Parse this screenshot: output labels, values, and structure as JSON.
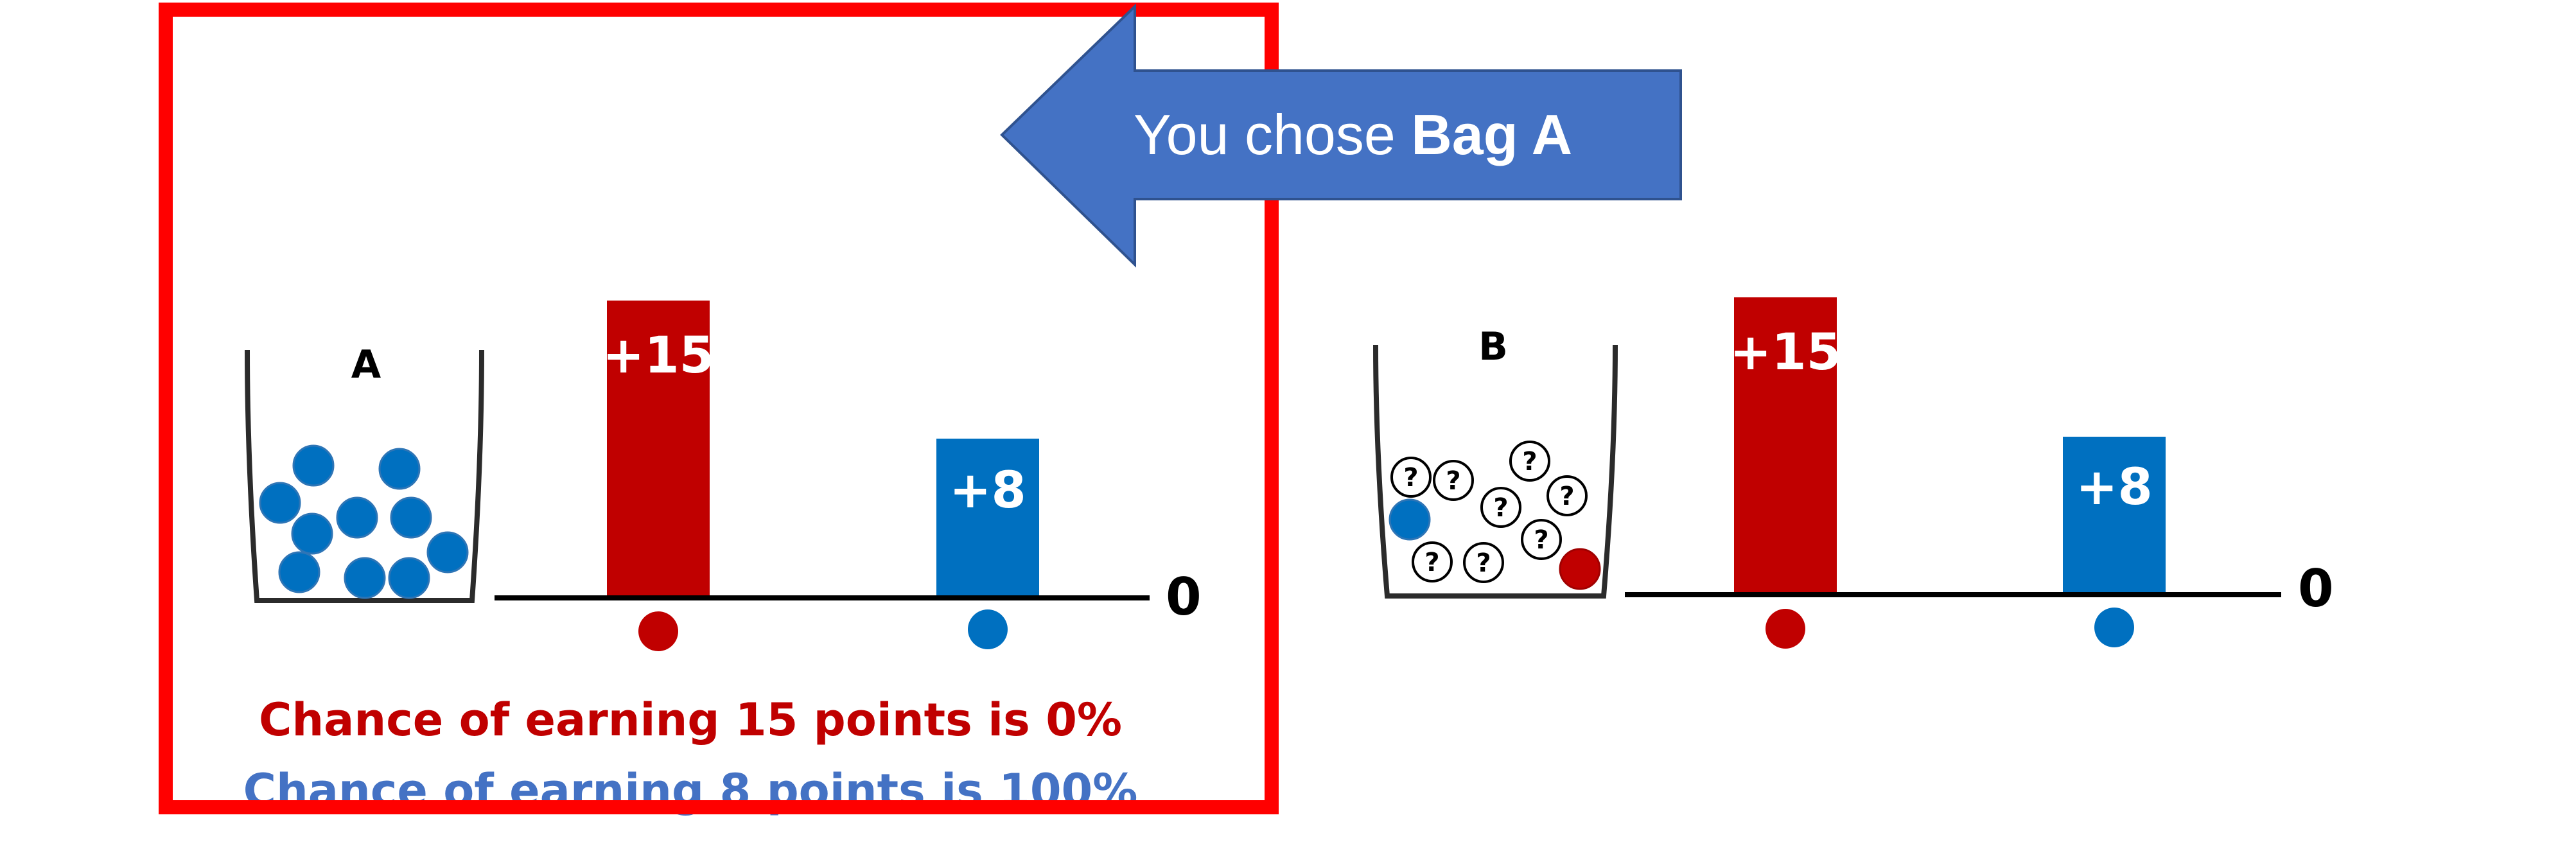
{
  "banner": {
    "prefix": "You chose ",
    "choice": "Bag A"
  },
  "bag_a": {
    "letter": "A",
    "marbles": {
      "blue": 10,
      "red": 0,
      "unknown": 0
    }
  },
  "bag_b": {
    "letter": "B",
    "marbles": {
      "blue": 1,
      "red": 1,
      "unknown": 8
    },
    "unknown_symbol": "?"
  },
  "chart_data": [
    {
      "type": "bar",
      "title": "A",
      "categories": [
        "red",
        "blue"
      ],
      "values": [
        15,
        8
      ],
      "data_labels": [
        "+15",
        "+8"
      ],
      "baseline_label": "0",
      "ylim": [
        0,
        16
      ]
    },
    {
      "type": "bar",
      "title": "B",
      "categories": [
        "red",
        "blue"
      ],
      "values": [
        15,
        8
      ],
      "data_labels": [
        "+15",
        "+8"
      ],
      "baseline_label": "0",
      "ylim": [
        0,
        16
      ]
    }
  ],
  "outcome": {
    "line1": "Chance of earning 15 points is 0%",
    "line2": "Chance of earning 8 points is 100%"
  },
  "colors": {
    "red_bar": "#C00000",
    "blue_bar": "#0070C0",
    "arrow": "#4472C4",
    "highlight_frame": "#FF0000",
    "text_red": "#C00000",
    "text_blue": "#4472C4"
  }
}
